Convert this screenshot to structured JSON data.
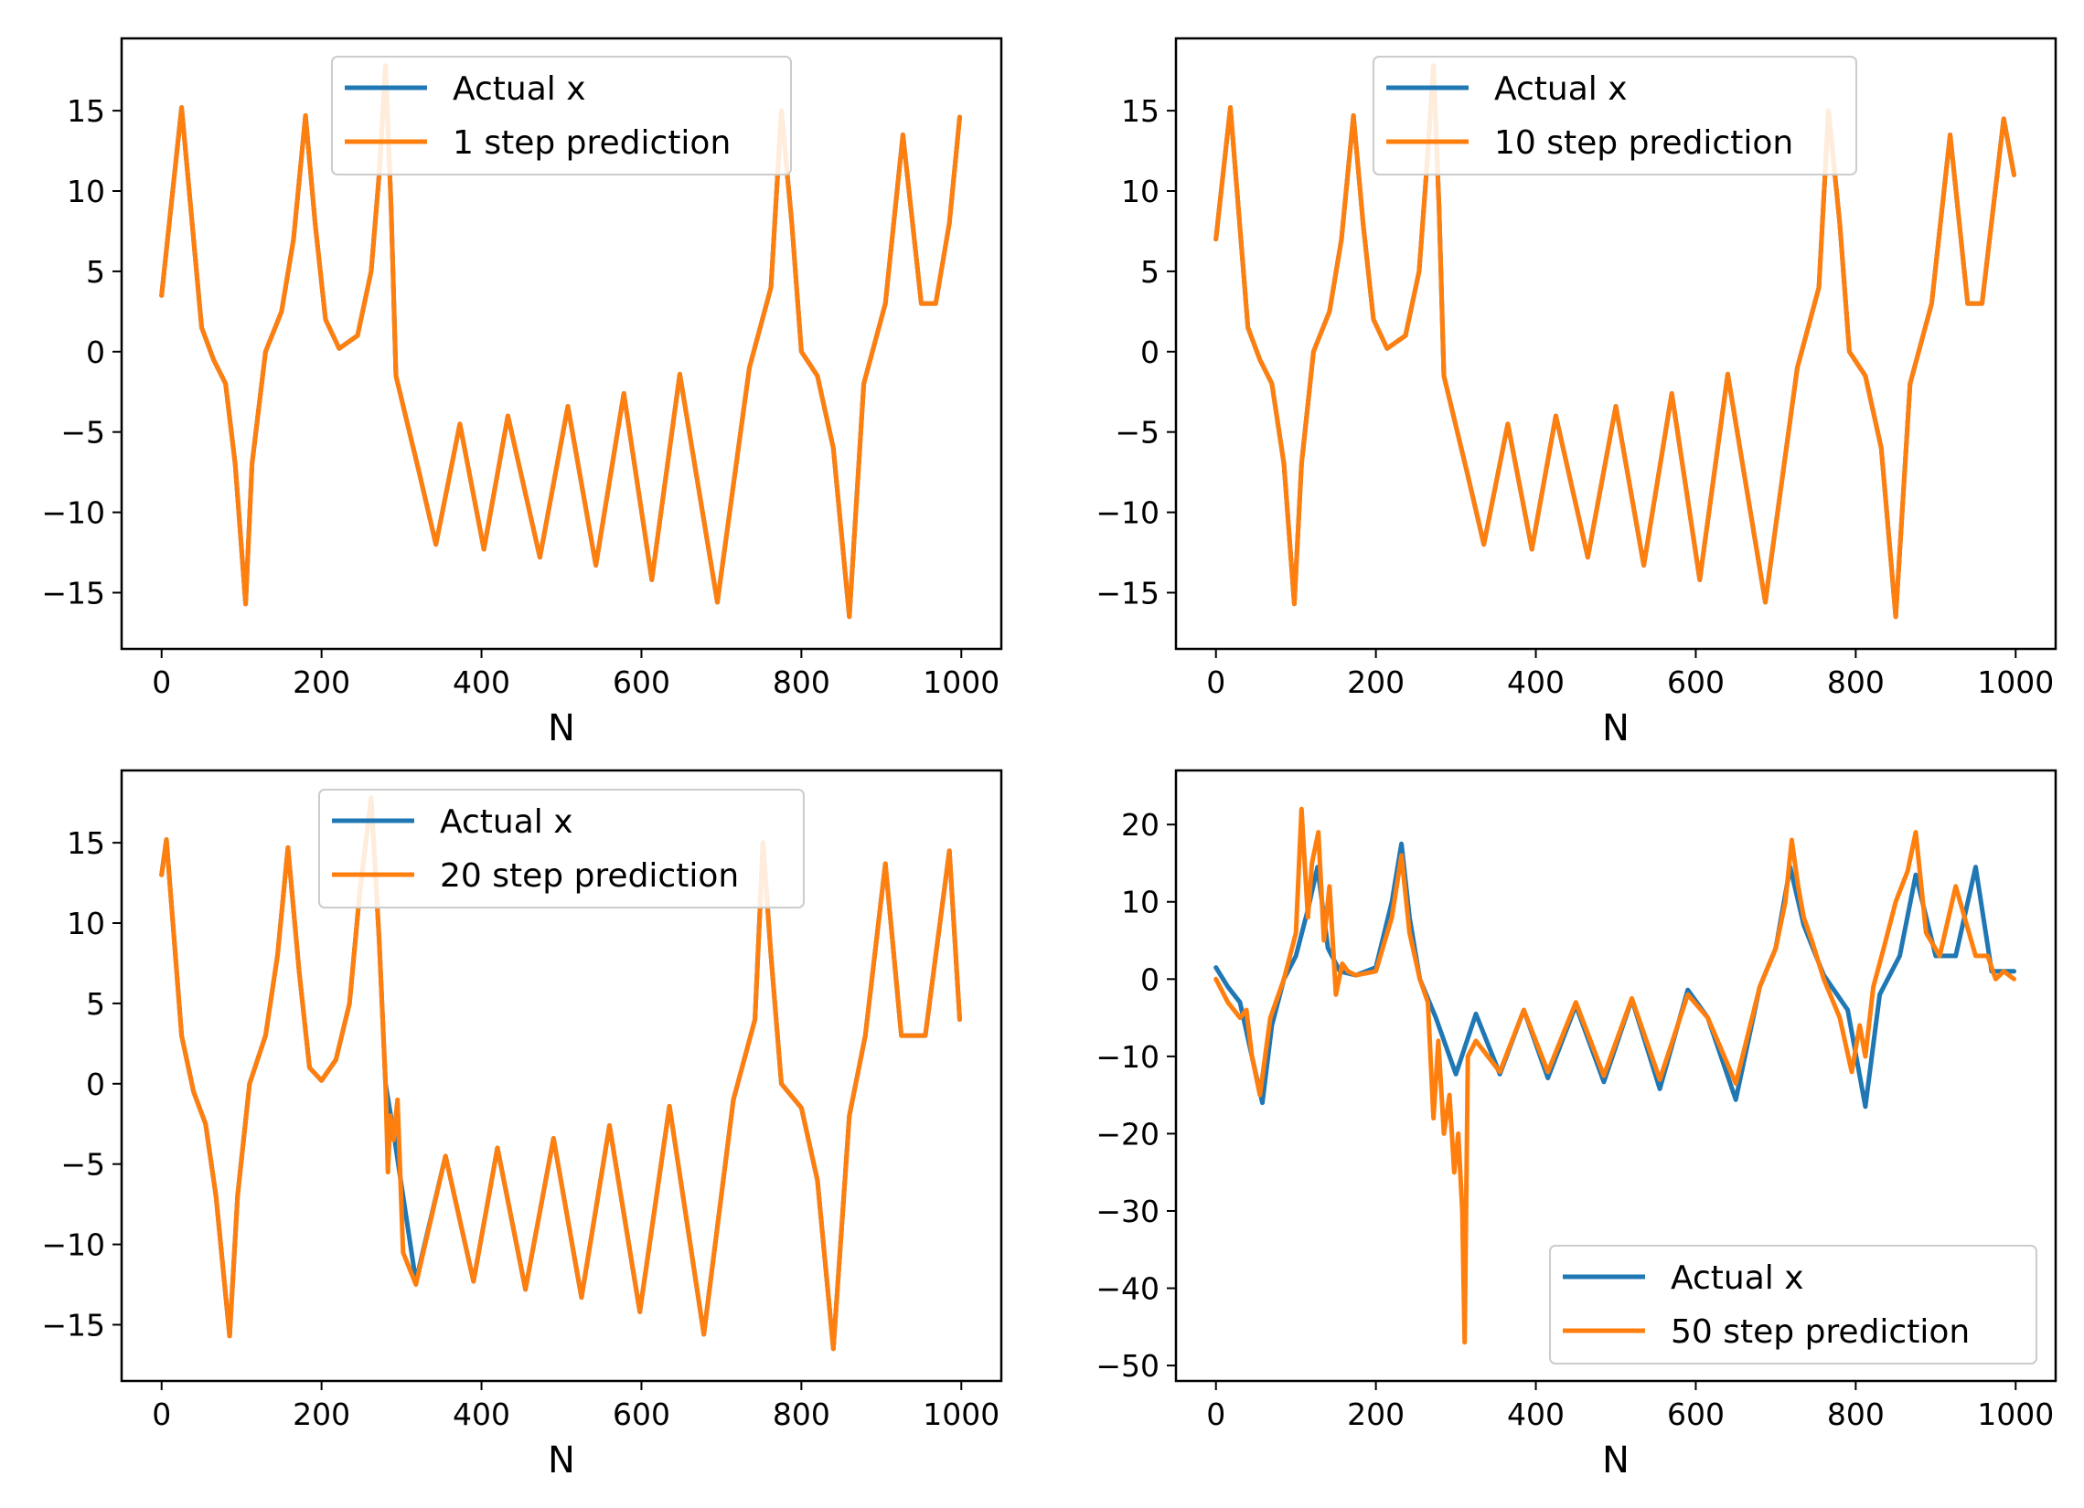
{
  "colors": {
    "actual": "#1f77b4",
    "prediction": "#ff7f0e",
    "axes": "#000000",
    "background": "#ffffff",
    "legend_frame": "#cccccc"
  },
  "chart_data": [
    {
      "type": "line",
      "xlabel": "N",
      "ylabel": "",
      "xlim": [
        -50,
        1050
      ],
      "ylim": [
        -18.5,
        19.5
      ],
      "xticks": [
        0,
        200,
        400,
        600,
        800,
        1000
      ],
      "xtick_labels": [
        "0",
        "200",
        "400",
        "600",
        "800",
        "1000"
      ],
      "yticks": [
        -15,
        -10,
        -5,
        0,
        5,
        10,
        15
      ],
      "ytick_labels": [
        "−15",
        "−10",
        "−5",
        "0",
        "5",
        "10",
        "15"
      ],
      "legend": {
        "location": "upper center",
        "entries": [
          "Actual x",
          "1 step prediction"
        ]
      },
      "series": [
        {
          "name": "Actual x",
          "color_key": "actual",
          "x": [
            0,
            25,
            50,
            65,
            80,
            92,
            105,
            113,
            130,
            150,
            165,
            180,
            192,
            205,
            222,
            245,
            262,
            272,
            280,
            287,
            293,
            305,
            322,
            343,
            373,
            403,
            433,
            473,
            508,
            543,
            578,
            613,
            648,
            695,
            735,
            762,
            775,
            788,
            800,
            820,
            840,
            860,
            878,
            905,
            927,
            950,
            968,
            985,
            998
          ],
          "y": [
            3.5,
            15.2,
            1.5,
            -0.5,
            -2.0,
            -7.0,
            -15.7,
            -7.0,
            0.0,
            2.5,
            7.0,
            14.7,
            8.0,
            2.0,
            0.2,
            1.0,
            5.0,
            11.0,
            17.8,
            9.0,
            -1.5,
            -4.0,
            -7.5,
            -12.0,
            -4.5,
            -12.3,
            -4.0,
            -12.8,
            -3.4,
            -13.3,
            -2.6,
            -14.2,
            -1.4,
            -15.6,
            -1.0,
            4.0,
            15.0,
            8.0,
            0.0,
            -1.5,
            -6.0,
            -16.5,
            -2.0,
            3.0,
            13.5,
            3.0,
            3.0,
            8.0,
            14.6
          ]
        },
        {
          "name": "1 step prediction",
          "color_key": "prediction",
          "x": [
            0,
            25,
            50,
            65,
            80,
            92,
            105,
            113,
            130,
            150,
            165,
            180,
            192,
            205,
            222,
            245,
            262,
            272,
            280,
            287,
            293,
            305,
            322,
            343,
            373,
            403,
            433,
            473,
            508,
            543,
            578,
            613,
            648,
            695,
            735,
            762,
            775,
            788,
            800,
            820,
            840,
            860,
            878,
            905,
            927,
            950,
            968,
            985,
            998
          ],
          "y": [
            3.5,
            15.2,
            1.5,
            -0.5,
            -2.0,
            -7.0,
            -15.7,
            -7.0,
            0.0,
            2.5,
            7.0,
            14.7,
            8.0,
            2.0,
            0.2,
            1.0,
            5.0,
            11.0,
            17.8,
            9.0,
            -1.5,
            -4.0,
            -7.5,
            -12.0,
            -4.5,
            -12.3,
            -4.0,
            -12.8,
            -3.4,
            -13.3,
            -2.6,
            -14.2,
            -1.4,
            -15.6,
            -1.0,
            4.0,
            15.0,
            8.0,
            0.0,
            -1.5,
            -6.0,
            -16.5,
            -2.0,
            3.0,
            13.5,
            3.0,
            3.0,
            8.0,
            14.6
          ]
        }
      ]
    },
    {
      "type": "line",
      "xlabel": "N",
      "ylabel": "",
      "xlim": [
        -50,
        1050
      ],
      "ylim": [
        -18.5,
        19.5
      ],
      "xticks": [
        0,
        200,
        400,
        600,
        800,
        1000
      ],
      "xtick_labels": [
        "0",
        "200",
        "400",
        "600",
        "800",
        "1000"
      ],
      "yticks": [
        -15,
        -10,
        -5,
        0,
        5,
        10,
        15
      ],
      "ytick_labels": [
        "−15",
        "−10",
        "−5",
        "0",
        "5",
        "10",
        "15"
      ],
      "legend": {
        "location": "upper center",
        "entries": [
          "Actual x",
          "10 step prediction"
        ]
      },
      "series": [
        {
          "name": "Actual x",
          "color_key": "actual",
          "x": [
            0,
            18,
            40,
            55,
            70,
            85,
            98,
            107,
            122,
            142,
            157,
            172,
            184,
            197,
            214,
            237,
            254,
            263,
            272,
            279,
            285,
            297,
            314,
            335,
            365,
            395,
            425,
            465,
            500,
            535,
            570,
            605,
            640,
            687,
            727,
            754,
            766,
            780,
            792,
            812,
            832,
            850,
            868,
            895,
            918,
            940,
            958,
            985,
            998
          ],
          "y": [
            7.0,
            15.2,
            1.5,
            -0.5,
            -2.0,
            -7.0,
            -15.7,
            -7.0,
            0.0,
            2.5,
            7.0,
            14.7,
            8.0,
            2.0,
            0.2,
            1.0,
            5.0,
            11.0,
            17.8,
            9.0,
            -1.5,
            -4.0,
            -7.5,
            -12.0,
            -4.5,
            -12.3,
            -4.0,
            -12.8,
            -3.4,
            -13.3,
            -2.6,
            -14.2,
            -1.4,
            -15.6,
            -1.0,
            4.0,
            15.0,
            8.0,
            0.0,
            -1.5,
            -6.0,
            -16.5,
            -2.0,
            3.0,
            13.5,
            3.0,
            3.0,
            14.5,
            11.0
          ]
        },
        {
          "name": "10 step prediction",
          "color_key": "prediction",
          "x": [
            0,
            18,
            40,
            55,
            70,
            85,
            98,
            107,
            122,
            142,
            157,
            172,
            184,
            197,
            214,
            237,
            254,
            263,
            272,
            279,
            285,
            297,
            314,
            335,
            365,
            395,
            425,
            465,
            500,
            535,
            570,
            605,
            640,
            687,
            727,
            754,
            766,
            780,
            792,
            812,
            832,
            850,
            868,
            895,
            918,
            940,
            958,
            985,
            998
          ],
          "y": [
            7.0,
            15.2,
            1.5,
            -0.5,
            -2.0,
            -7.0,
            -15.7,
            -7.0,
            0.0,
            2.5,
            7.0,
            14.7,
            8.0,
            2.0,
            0.2,
            1.0,
            5.0,
            11.0,
            17.8,
            9.0,
            -1.5,
            -4.0,
            -7.5,
            -12.0,
            -4.5,
            -12.3,
            -4.0,
            -12.8,
            -3.4,
            -13.3,
            -2.6,
            -14.2,
            -1.4,
            -15.6,
            -1.0,
            4.0,
            15.0,
            8.0,
            0.0,
            -1.5,
            -6.0,
            -16.5,
            -2.0,
            3.0,
            13.5,
            3.0,
            3.0,
            14.5,
            11.0
          ]
        }
      ]
    },
    {
      "type": "line",
      "xlabel": "N",
      "ylabel": "",
      "xlim": [
        -50,
        1050
      ],
      "ylim": [
        -18.5,
        19.5
      ],
      "xticks": [
        0,
        200,
        400,
        600,
        800,
        1000
      ],
      "xtick_labels": [
        "0",
        "200",
        "400",
        "600",
        "800",
        "1000"
      ],
      "yticks": [
        -15,
        -10,
        -5,
        0,
        5,
        10,
        15
      ],
      "ytick_labels": [
        "−15",
        "−10",
        "−5",
        "0",
        "5",
        "10",
        "15"
      ],
      "legend": {
        "location": "upper center",
        "entries": [
          "Actual x",
          "20 step prediction"
        ]
      },
      "series": [
        {
          "name": "Actual x",
          "color_key": "actual",
          "x": [
            0,
            6,
            25,
            40,
            55,
            68,
            85,
            95,
            110,
            130,
            145,
            158,
            172,
            185,
            200,
            218,
            235,
            248,
            262,
            272,
            280,
            290,
            302,
            318,
            355,
            390,
            420,
            455,
            490,
            525,
            560,
            598,
            635,
            678,
            715,
            742,
            752,
            762,
            775,
            800,
            820,
            840,
            860,
            880,
            905,
            925,
            955,
            985,
            998
          ],
          "y": [
            13.0,
            15.2,
            3.0,
            -0.5,
            -2.5,
            -7.0,
            -15.7,
            -7.0,
            0.0,
            3.0,
            8.0,
            14.7,
            7.0,
            1.0,
            0.2,
            1.5,
            5.0,
            12.0,
            17.8,
            9.0,
            0.0,
            -3.0,
            -7.0,
            -12.3,
            -4.5,
            -12.3,
            -4.0,
            -12.8,
            -3.4,
            -13.3,
            -2.6,
            -14.2,
            -1.4,
            -15.6,
            -1.0,
            4.0,
            15.0,
            8.0,
            0.0,
            -1.5,
            -6.0,
            -16.5,
            -2.0,
            3.0,
            13.7,
            3.0,
            3.0,
            14.5,
            4.0
          ]
        },
        {
          "name": "20 step prediction",
          "color_key": "prediction",
          "x": [
            0,
            6,
            25,
            40,
            55,
            68,
            85,
            95,
            110,
            130,
            145,
            158,
            172,
            185,
            200,
            218,
            235,
            248,
            262,
            272,
            280,
            283,
            286,
            290,
            295,
            302,
            318,
            355,
            390,
            420,
            455,
            490,
            525,
            560,
            598,
            635,
            678,
            715,
            742,
            752,
            762,
            775,
            800,
            820,
            840,
            860,
            880,
            905,
            925,
            955,
            985,
            998
          ],
          "y": [
            13.0,
            15.2,
            3.0,
            -0.5,
            -2.5,
            -7.0,
            -15.7,
            -7.0,
            0.0,
            3.0,
            8.0,
            14.7,
            7.0,
            1.0,
            0.2,
            1.5,
            5.0,
            12.0,
            17.8,
            9.0,
            0.0,
            -5.5,
            -2.0,
            -3.5,
            -1.0,
            -10.5,
            -12.5,
            -4.5,
            -12.3,
            -4.0,
            -12.8,
            -3.4,
            -13.3,
            -2.6,
            -14.2,
            -1.4,
            -15.6,
            -1.0,
            4.0,
            15.0,
            8.0,
            0.0,
            -1.5,
            -6.0,
            -16.5,
            -2.0,
            3.0,
            13.7,
            3.0,
            3.0,
            14.5,
            4.0
          ]
        }
      ]
    },
    {
      "type": "line",
      "xlabel": "N",
      "ylabel": "",
      "xlim": [
        -50,
        1050
      ],
      "ylim": [
        -52,
        27
      ],
      "xticks": [
        0,
        200,
        400,
        600,
        800,
        1000
      ],
      "xtick_labels": [
        "0",
        "200",
        "400",
        "600",
        "800",
        "1000"
      ],
      "yticks": [
        -50,
        -40,
        -30,
        -20,
        -10,
        0,
        10,
        20
      ],
      "ytick_labels": [
        "−50",
        "−40",
        "−30",
        "−20",
        "−10",
        "0",
        "10",
        "20"
      ],
      "legend": {
        "location": "lower right",
        "entries": [
          "Actual x",
          "50 step prediction"
        ]
      },
      "series": [
        {
          "name": "Actual x",
          "color_key": "actual",
          "x": [
            0,
            15,
            30,
            45,
            58,
            70,
            85,
            100,
            115,
            127,
            140,
            155,
            175,
            200,
            220,
            232,
            242,
            255,
            275,
            300,
            325,
            355,
            385,
            415,
            450,
            485,
            520,
            555,
            590,
            615,
            650,
            680,
            700,
            718,
            735,
            760,
            790,
            812,
            830,
            855,
            875,
            900,
            925,
            950,
            970,
            998
          ],
          "y": [
            1.5,
            -1.0,
            -3.0,
            -10.0,
            -16.0,
            -6.0,
            0.0,
            3.0,
            9.0,
            14.5,
            4.0,
            1.0,
            0.5,
            1.5,
            10.0,
            17.5,
            8.0,
            0.0,
            -5.0,
            -12.3,
            -4.5,
            -12.3,
            -4.0,
            -12.8,
            -3.4,
            -13.3,
            -2.6,
            -14.2,
            -1.4,
            -5.0,
            -15.6,
            -1.0,
            4.0,
            14.5,
            7.0,
            0.5,
            -4.0,
            -16.5,
            -2.0,
            3.0,
            13.5,
            3.0,
            3.0,
            14.5,
            1.0,
            1.0
          ]
        },
        {
          "name": "50 step prediction",
          "color_key": "prediction",
          "x": [
            0,
            15,
            30,
            38,
            45,
            55,
            68,
            85,
            100,
            107,
            115,
            120,
            128,
            135,
            142,
            150,
            158,
            165,
            175,
            200,
            220,
            232,
            242,
            255,
            265,
            272,
            278,
            285,
            292,
            298,
            303,
            308,
            311,
            315,
            325,
            355,
            385,
            415,
            450,
            485,
            520,
            555,
            590,
            615,
            650,
            680,
            700,
            712,
            720,
            728,
            735,
            745,
            760,
            780,
            795,
            805,
            812,
            822,
            835,
            850,
            865,
            875,
            888,
            905,
            925,
            950,
            965,
            975,
            985,
            998
          ],
          "y": [
            0.0,
            -3.0,
            -5.0,
            -4.0,
            -10.0,
            -15.0,
            -5.0,
            0.0,
            6.0,
            22.0,
            8.0,
            15.0,
            19.0,
            5.0,
            12.0,
            -2.0,
            2.0,
            1.0,
            0.5,
            1.0,
            8.0,
            16.0,
            6.0,
            0.0,
            -3.0,
            -18.0,
            -8.0,
            -20.0,
            -15.0,
            -25.0,
            -20.0,
            -30.0,
            -47.0,
            -10.0,
            -8.0,
            -12.0,
            -4.0,
            -12.0,
            -3.0,
            -12.5,
            -2.5,
            -13.0,
            -2.0,
            -5.0,
            -13.5,
            -1.0,
            4.0,
            10.0,
            18.0,
            12.0,
            8.0,
            5.0,
            0.0,
            -5.0,
            -12.0,
            -6.0,
            -10.0,
            -1.0,
            4.0,
            10.0,
            14.0,
            19.0,
            6.0,
            3.0,
            12.0,
            3.0,
            3.0,
            0.0,
            1.0,
            0.0
          ]
        }
      ]
    }
  ]
}
